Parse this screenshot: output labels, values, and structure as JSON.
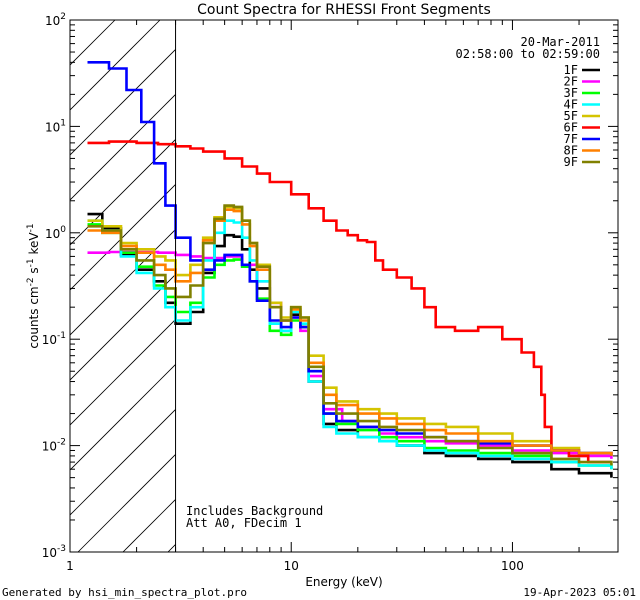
{
  "chart_data": {
    "type": "line",
    "title": "Count Spectra for RHESSI Front Segments",
    "xlabel": "Energy (keV)",
    "ylabel_main": "counts cm",
    "ylabel_exp1": "-2",
    "ylabel_mid": " s",
    "ylabel_exp2": "-1",
    "ylabel_tail": " keV",
    "ylabel_exp3": "-1",
    "x_scale": "log",
    "y_scale": "log",
    "xlim": [
      1,
      300
    ],
    "ylim": [
      0.001,
      100
    ],
    "x_ticks": [
      {
        "value": 1,
        "label": "1"
      },
      {
        "value": 10,
        "label": "10"
      },
      {
        "value": 100,
        "label": "100"
      }
    ],
    "y_ticks": [
      {
        "value": 0.001,
        "base": "10",
        "exp": "-3"
      },
      {
        "value": 0.01,
        "base": "10",
        "exp": "-2"
      },
      {
        "value": 0.1,
        "base": "10",
        "exp": "-1"
      },
      {
        "value": 1,
        "base": "10",
        "exp": "0"
      },
      {
        "value": 10,
        "base": "10",
        "exp": "1"
      },
      {
        "value": 100,
        "base": "10",
        "exp": "2"
      }
    ],
    "attenuator_threshold_keV": 3,
    "date": "20-Mar-2011",
    "time_range": "02:58:00 to 02:59:00",
    "notes": [
      "Includes Background",
      "Att A0, FDecim 1"
    ],
    "legend_position": "top-right",
    "series": [
      {
        "name": "1F",
        "color": "#000000",
        "points": [
          [
            1.2,
            1.5
          ],
          [
            1.4,
            1.1
          ],
          [
            1.7,
            0.62
          ],
          [
            2.0,
            0.45
          ],
          [
            2.4,
            0.35
          ],
          [
            2.7,
            0.22
          ],
          [
            3.0,
            0.14
          ],
          [
            3.5,
            0.18
          ],
          [
            4.0,
            0.42
          ],
          [
            4.5,
            0.75
          ],
          [
            5.0,
            0.95
          ],
          [
            5.5,
            0.92
          ],
          [
            6.0,
            0.7
          ],
          [
            6.5,
            0.45
          ],
          [
            7.0,
            0.3
          ],
          [
            8.0,
            0.14
          ],
          [
            9.0,
            0.12
          ],
          [
            10.0,
            0.17
          ],
          [
            11.0,
            0.13
          ],
          [
            12.0,
            0.04
          ],
          [
            14.0,
            0.016
          ],
          [
            16.0,
            0.014
          ],
          [
            20.0,
            0.012
          ],
          [
            25.0,
            0.011
          ],
          [
            30.0,
            0.01
          ],
          [
            40.0,
            0.0085
          ],
          [
            50.0,
            0.008
          ],
          [
            70.0,
            0.0075
          ],
          [
            100.0,
            0.007
          ],
          [
            150.0,
            0.006
          ],
          [
            200.0,
            0.0055
          ],
          [
            280.0,
            0.005
          ]
        ]
      },
      {
        "name": "2F",
        "color": "#ff00ff",
        "points": [
          [
            1.2,
            0.65
          ],
          [
            1.5,
            0.66
          ],
          [
            2.0,
            0.66
          ],
          [
            2.5,
            0.65
          ],
          [
            3.0,
            0.62
          ],
          [
            3.5,
            0.6
          ],
          [
            4.0,
            0.58
          ],
          [
            5.0,
            0.6
          ],
          [
            6.0,
            0.5
          ],
          [
            7.0,
            0.35
          ],
          [
            8.0,
            0.22
          ],
          [
            9.0,
            0.15
          ],
          [
            10.0,
            0.16
          ],
          [
            11.0,
            0.12
          ],
          [
            12.0,
            0.045
          ],
          [
            14.0,
            0.022
          ],
          [
            17.0,
            0.017
          ],
          [
            20.0,
            0.015
          ],
          [
            25.0,
            0.013
          ],
          [
            30.0,
            0.012
          ],
          [
            40.0,
            0.011
          ],
          [
            50.0,
            0.0105
          ],
          [
            70.0,
            0.01
          ],
          [
            100.0,
            0.009
          ],
          [
            150.0,
            0.0085
          ],
          [
            200.0,
            0.008
          ],
          [
            280.0,
            0.0075
          ]
        ]
      },
      {
        "name": "3F",
        "color": "#00ff00",
        "points": [
          [
            1.2,
            1.2
          ],
          [
            1.4,
            1.0
          ],
          [
            1.7,
            0.65
          ],
          [
            2.0,
            0.48
          ],
          [
            2.4,
            0.32
          ],
          [
            2.7,
            0.25
          ],
          [
            3.0,
            0.18
          ],
          [
            3.5,
            0.22
          ],
          [
            4.0,
            0.38
          ],
          [
            4.5,
            0.5
          ],
          [
            5.0,
            0.55
          ],
          [
            5.5,
            0.56
          ],
          [
            6.0,
            0.48
          ],
          [
            6.5,
            0.35
          ],
          [
            7.0,
            0.24
          ],
          [
            8.0,
            0.12
          ],
          [
            9.0,
            0.11
          ],
          [
            10.0,
            0.15
          ],
          [
            11.0,
            0.13
          ],
          [
            12.0,
            0.05
          ],
          [
            14.0,
            0.02
          ],
          [
            16.0,
            0.016
          ],
          [
            20.0,
            0.014
          ],
          [
            25.0,
            0.012
          ],
          [
            30.0,
            0.011
          ],
          [
            40.0,
            0.0095
          ],
          [
            50.0,
            0.009
          ],
          [
            70.0,
            0.0085
          ],
          [
            100.0,
            0.008
          ],
          [
            150.0,
            0.007
          ],
          [
            200.0,
            0.0065
          ],
          [
            280.0,
            0.006
          ]
        ]
      },
      {
        "name": "4F",
        "color": "#00ffff",
        "points": [
          [
            1.2,
            1.3
          ],
          [
            1.4,
            1.05
          ],
          [
            1.7,
            0.6
          ],
          [
            2.0,
            0.42
          ],
          [
            2.4,
            0.3
          ],
          [
            2.7,
            0.2
          ],
          [
            3.0,
            0.15
          ],
          [
            3.5,
            0.2
          ],
          [
            4.0,
            0.55
          ],
          [
            4.5,
            1.0
          ],
          [
            5.0,
            1.3
          ],
          [
            5.5,
            1.25
          ],
          [
            6.0,
            0.9
          ],
          [
            6.5,
            0.55
          ],
          [
            7.0,
            0.35
          ],
          [
            8.0,
            0.14
          ],
          [
            9.0,
            0.12
          ],
          [
            10.0,
            0.18
          ],
          [
            11.0,
            0.14
          ],
          [
            12.0,
            0.04
          ],
          [
            14.0,
            0.015
          ],
          [
            16.0,
            0.013
          ],
          [
            20.0,
            0.012
          ],
          [
            25.0,
            0.011
          ],
          [
            30.0,
            0.01
          ],
          [
            40.0,
            0.009
          ],
          [
            50.0,
            0.0085
          ],
          [
            70.0,
            0.008
          ],
          [
            100.0,
            0.0075
          ],
          [
            150.0,
            0.007
          ],
          [
            200.0,
            0.0065
          ],
          [
            280.0,
            0.006
          ]
        ]
      },
      {
        "name": "5F",
        "color": "#d4c400",
        "points": [
          [
            1.2,
            1.3
          ],
          [
            1.4,
            1.15
          ],
          [
            1.7,
            0.8
          ],
          [
            2.0,
            0.7
          ],
          [
            2.4,
            0.6
          ],
          [
            2.7,
            0.55
          ],
          [
            3.0,
            0.4
          ],
          [
            3.5,
            0.5
          ],
          [
            4.0,
            0.9
          ],
          [
            4.5,
            1.4
          ],
          [
            5.0,
            1.75
          ],
          [
            5.5,
            1.7
          ],
          [
            6.0,
            1.3
          ],
          [
            6.5,
            0.8
          ],
          [
            7.0,
            0.5
          ],
          [
            8.0,
            0.22
          ],
          [
            9.0,
            0.16
          ],
          [
            10.0,
            0.2
          ],
          [
            11.0,
            0.16
          ],
          [
            12.0,
            0.07
          ],
          [
            14.0,
            0.035
          ],
          [
            16.0,
            0.026
          ],
          [
            20.0,
            0.022
          ],
          [
            25.0,
            0.02
          ],
          [
            30.0,
            0.018
          ],
          [
            40.0,
            0.016
          ],
          [
            50.0,
            0.015
          ],
          [
            70.0,
            0.013
          ],
          [
            100.0,
            0.011
          ],
          [
            150.0,
            0.0095
          ],
          [
            200.0,
            0.0085
          ],
          [
            280.0,
            0.008
          ]
        ]
      },
      {
        "name": "6F",
        "color": "#ff0000",
        "points": [
          [
            1.2,
            7.0
          ],
          [
            1.5,
            7.2
          ],
          [
            2.0,
            7.0
          ],
          [
            2.5,
            6.8
          ],
          [
            3.0,
            6.5
          ],
          [
            3.5,
            6.2
          ],
          [
            4.0,
            5.8
          ],
          [
            5.0,
            5.0
          ],
          [
            6.0,
            4.2
          ],
          [
            7.0,
            3.6
          ],
          [
            8.0,
            3.0
          ],
          [
            10.0,
            2.3
          ],
          [
            12.0,
            1.7
          ],
          [
            14.0,
            1.3
          ],
          [
            16.0,
            1.05
          ],
          [
            18.0,
            0.95
          ],
          [
            20.0,
            0.85
          ],
          [
            22.0,
            0.82
          ],
          [
            24.0,
            0.55
          ],
          [
            26.0,
            0.45
          ],
          [
            30.0,
            0.38
          ],
          [
            35.0,
            0.3
          ],
          [
            40.0,
            0.2
          ],
          [
            45.0,
            0.13
          ],
          [
            55.0,
            0.12
          ],
          [
            70.0,
            0.13
          ],
          [
            90.0,
            0.1
          ],
          [
            110.0,
            0.075
          ],
          [
            125.0,
            0.055
          ],
          [
            135.0,
            0.03
          ],
          [
            140.0,
            0.015
          ],
          [
            150.0,
            0.009
          ],
          [
            180.0,
            0.008
          ],
          [
            220.0,
            0.007
          ],
          [
            280.0,
            0.007
          ]
        ]
      },
      {
        "name": "7F",
        "color": "#0000ff",
        "points": [
          [
            1.2,
            40.0
          ],
          [
            1.5,
            35.0
          ],
          [
            1.8,
            22.0
          ],
          [
            2.1,
            11.0
          ],
          [
            2.4,
            4.5
          ],
          [
            2.7,
            1.8
          ],
          [
            3.0,
            0.9
          ],
          [
            3.5,
            0.55
          ],
          [
            4.0,
            0.45
          ],
          [
            4.5,
            0.55
          ],
          [
            5.0,
            0.62
          ],
          [
            5.5,
            0.62
          ],
          [
            6.0,
            0.5
          ],
          [
            6.5,
            0.35
          ],
          [
            7.0,
            0.23
          ],
          [
            8.0,
            0.15
          ],
          [
            9.0,
            0.13
          ],
          [
            10.0,
            0.16
          ],
          [
            11.0,
            0.13
          ],
          [
            12.0,
            0.05
          ],
          [
            14.0,
            0.02
          ],
          [
            16.0,
            0.017
          ],
          [
            20.0,
            0.015
          ],
          [
            25.0,
            0.014
          ],
          [
            30.0,
            0.013
          ],
          [
            40.0,
            0.012
          ],
          [
            50.0,
            0.011
          ],
          [
            70.0,
            0.0105
          ],
          [
            100.0,
            0.01
          ],
          [
            150.0,
            0.009
          ],
          [
            200.0,
            0.0085
          ],
          [
            280.0,
            0.008
          ]
        ]
      },
      {
        "name": "8F",
        "color": "#ff8000",
        "points": [
          [
            1.2,
            1.05
          ],
          [
            1.4,
            1.0
          ],
          [
            1.7,
            0.75
          ],
          [
            2.0,
            0.65
          ],
          [
            2.4,
            0.5
          ],
          [
            2.7,
            0.45
          ],
          [
            3.0,
            0.35
          ],
          [
            3.5,
            0.42
          ],
          [
            4.0,
            0.85
          ],
          [
            4.5,
            1.3
          ],
          [
            5.0,
            1.65
          ],
          [
            5.5,
            1.6
          ],
          [
            6.0,
            1.2
          ],
          [
            6.5,
            0.75
          ],
          [
            7.0,
            0.45
          ],
          [
            8.0,
            0.2
          ],
          [
            9.0,
            0.15
          ],
          [
            10.0,
            0.19
          ],
          [
            11.0,
            0.15
          ],
          [
            12.0,
            0.06
          ],
          [
            14.0,
            0.03
          ],
          [
            16.0,
            0.024
          ],
          [
            20.0,
            0.02
          ],
          [
            25.0,
            0.018
          ],
          [
            30.0,
            0.016
          ],
          [
            40.0,
            0.014
          ],
          [
            50.0,
            0.013
          ],
          [
            70.0,
            0.011
          ],
          [
            100.0,
            0.01
          ],
          [
            150.0,
            0.009
          ],
          [
            200.0,
            0.0085
          ],
          [
            280.0,
            0.008
          ]
        ]
      },
      {
        "name": "9F",
        "color": "#808000",
        "points": [
          [
            1.2,
            1.15
          ],
          [
            1.4,
            1.05
          ],
          [
            1.7,
            0.7
          ],
          [
            2.0,
            0.55
          ],
          [
            2.4,
            0.4
          ],
          [
            2.7,
            0.3
          ],
          [
            3.0,
            0.25
          ],
          [
            3.5,
            0.32
          ],
          [
            4.0,
            0.8
          ],
          [
            4.5,
            1.35
          ],
          [
            5.0,
            1.8
          ],
          [
            5.5,
            1.75
          ],
          [
            6.0,
            1.3
          ],
          [
            6.5,
            0.8
          ],
          [
            7.0,
            0.48
          ],
          [
            8.0,
            0.2
          ],
          [
            9.0,
            0.15
          ],
          [
            10.0,
            0.2
          ],
          [
            11.0,
            0.16
          ],
          [
            12.0,
            0.055
          ],
          [
            14.0,
            0.025
          ],
          [
            16.0,
            0.02
          ],
          [
            20.0,
            0.017
          ],
          [
            25.0,
            0.015
          ],
          [
            30.0,
            0.014
          ],
          [
            40.0,
            0.012
          ],
          [
            50.0,
            0.011
          ],
          [
            70.0,
            0.0095
          ],
          [
            100.0,
            0.0085
          ],
          [
            150.0,
            0.0075
          ],
          [
            200.0,
            0.007
          ],
          [
            280.0,
            0.0065
          ]
        ]
      }
    ]
  },
  "footer": {
    "left": "Generated by hsi_min_spectra_plot.pro",
    "right": "19-Apr-2023 05:01"
  }
}
